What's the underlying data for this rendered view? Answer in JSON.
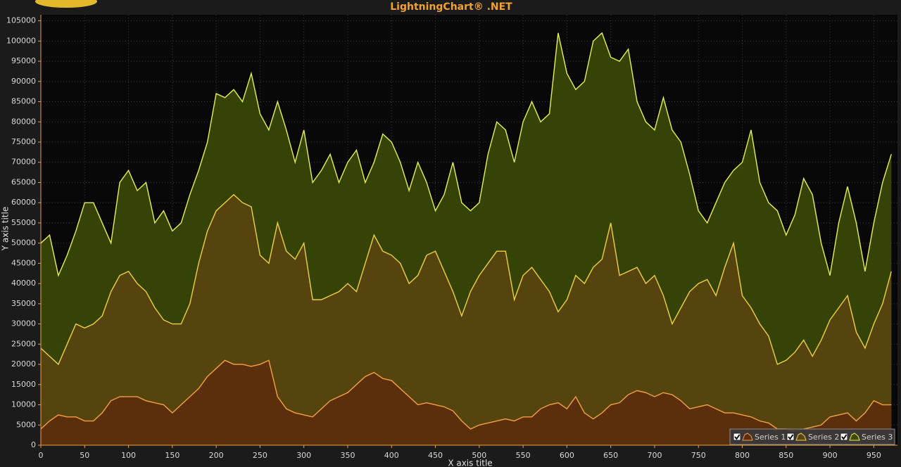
{
  "chart_data": {
    "type": "area",
    "title": "LightningChart® .NET",
    "x_label": "X axis title",
    "y_label": "Y axis title",
    "x": [
      0,
      10,
      20,
      30,
      40,
      50,
      60,
      70,
      80,
      90,
      100,
      110,
      120,
      130,
      140,
      150,
      160,
      170,
      180,
      190,
      200,
      210,
      220,
      230,
      240,
      250,
      260,
      270,
      280,
      290,
      300,
      310,
      320,
      330,
      340,
      350,
      360,
      370,
      380,
      390,
      400,
      410,
      420,
      430,
      440,
      450,
      460,
      470,
      480,
      490,
      500,
      510,
      520,
      530,
      540,
      550,
      560,
      570,
      580,
      590,
      600,
      610,
      620,
      630,
      640,
      650,
      660,
      670,
      680,
      690,
      700,
      710,
      720,
      730,
      740,
      750,
      760,
      770,
      780,
      790,
      800,
      810,
      820,
      830,
      840,
      850,
      860,
      870,
      880,
      890,
      900,
      910,
      920,
      930,
      940,
      950,
      960,
      970
    ],
    "series": [
      {
        "name": "Series 1",
        "color": "#f5a040",
        "fill": "#5c2c0c",
        "values": [
          4000,
          6000,
          7500,
          7000,
          7000,
          6000,
          6000,
          8000,
          11000,
          12000,
          12000,
          12000,
          11000,
          10500,
          10000,
          8000,
          10000,
          12000,
          14000,
          17000,
          19000,
          21000,
          20000,
          20000,
          19500,
          20000,
          21000,
          12000,
          9000,
          8000,
          7500,
          7000,
          9000,
          11000,
          12000,
          13000,
          15000,
          17000,
          18000,
          16500,
          16000,
          14000,
          12000,
          10000,
          10500,
          10000,
          9500,
          8500,
          6000,
          4000,
          5000,
          5500,
          6000,
          6500,
          6000,
          7000,
          7000,
          9000,
          10000,
          10500,
          9000,
          12000,
          8000,
          6500,
          8000,
          10000,
          10500,
          12500,
          13500,
          13000,
          12000,
          13000,
          12500,
          11000,
          9000,
          9500,
          10000,
          9000,
          8000,
          8000,
          7500,
          7000,
          6000,
          5500,
          4000,
          4000,
          3500,
          4000,
          4500,
          5000,
          7000,
          7500,
          8000,
          6000,
          8000,
          11000,
          10000,
          10000
        ]
      },
      {
        "name": "Series 2",
        "color": "#f0d040",
        "fill": "#5a4510",
        "values": [
          24000,
          22000,
          20000,
          25000,
          30000,
          29000,
          30000,
          32000,
          38000,
          42000,
          43000,
          40000,
          38000,
          34000,
          31000,
          30000,
          30000,
          35000,
          45000,
          53000,
          58000,
          60000,
          62000,
          60000,
          59000,
          47000,
          45000,
          55000,
          48000,
          46000,
          50000,
          36000,
          36000,
          37000,
          38000,
          40000,
          38000,
          45000,
          52000,
          48000,
          47000,
          45000,
          40000,
          42000,
          47000,
          48000,
          43000,
          38000,
          32000,
          38000,
          42000,
          45000,
          48000,
          48000,
          36000,
          42000,
          44000,
          41000,
          38000,
          33000,
          36000,
          42000,
          40000,
          44000,
          46000,
          55000,
          42000,
          43000,
          44000,
          40000,
          42000,
          37000,
          30000,
          34000,
          38000,
          40000,
          41000,
          37000,
          44000,
          50000,
          37000,
          34000,
          30000,
          27000,
          20000,
          21000,
          23000,
          26000,
          22000,
          26000,
          31000,
          34000,
          37000,
          28000,
          24000,
          30000,
          35000,
          43000
        ]
      },
      {
        "name": "Series 3",
        "color": "#e8f050",
        "fill": "#3c4a08",
        "values": [
          50000,
          52000,
          42000,
          47000,
          53000,
          60000,
          60000,
          55000,
          50000,
          65000,
          68000,
          63000,
          65000,
          55000,
          58000,
          53000,
          55000,
          62000,
          68000,
          75000,
          87000,
          86000,
          88000,
          85000,
          92000,
          82000,
          78000,
          85000,
          78000,
          70000,
          78000,
          65000,
          68000,
          72000,
          65000,
          70000,
          73000,
          65000,
          70000,
          77000,
          75000,
          70000,
          63000,
          70000,
          65000,
          58000,
          62000,
          70000,
          60000,
          58000,
          60000,
          72000,
          80000,
          78000,
          70000,
          80000,
          85000,
          80000,
          82000,
          102000,
          92000,
          88000,
          90000,
          100000,
          102000,
          96000,
          95000,
          98000,
          85000,
          80000,
          78000,
          86000,
          78000,
          75000,
          67000,
          58000,
          55000,
          60000,
          65000,
          68000,
          70000,
          78000,
          65000,
          60000,
          58000,
          52000,
          57000,
          66000,
          62000,
          50000,
          42000,
          55000,
          64000,
          55000,
          43000,
          55000,
          65000,
          72000
        ]
      }
    ],
    "xlim": [
      0,
      977
    ],
    "ylim": [
      0,
      106500
    ],
    "xticks": [
      0,
      50,
      100,
      150,
      200,
      250,
      300,
      350,
      400,
      450,
      500,
      550,
      600,
      650,
      700,
      750,
      800,
      850,
      900,
      950
    ],
    "yticks": [
      0,
      5000,
      10000,
      15000,
      20000,
      25000,
      30000,
      35000,
      40000,
      45000,
      50000,
      55000,
      60000,
      65000,
      70000,
      75000,
      80000,
      85000,
      90000,
      95000,
      100000,
      105000
    ],
    "grid": true,
    "legend": "bottom-right"
  }
}
